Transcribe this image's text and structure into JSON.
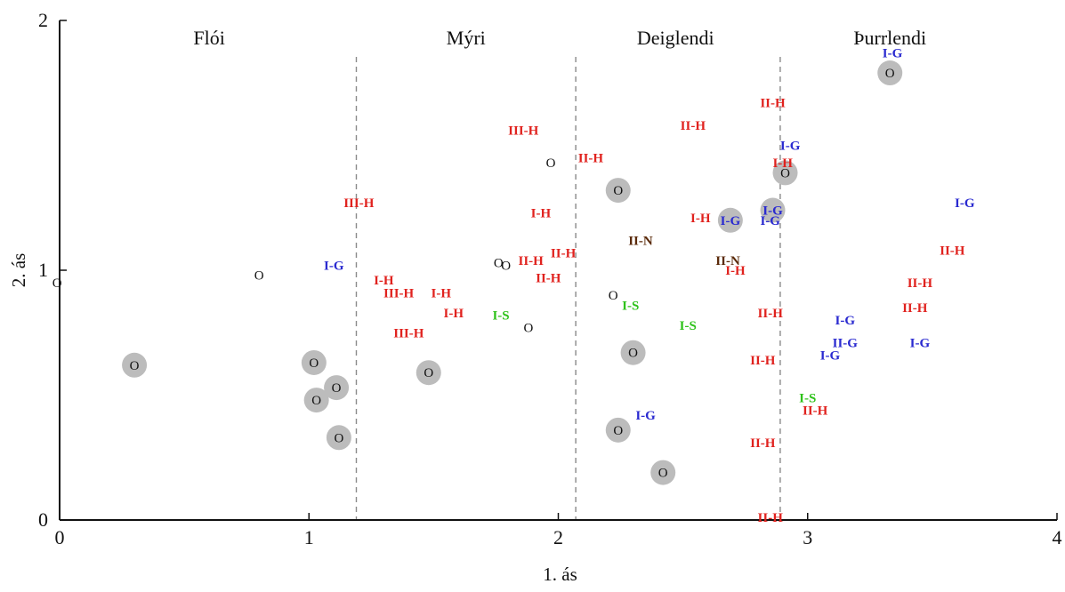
{
  "chart_data": {
    "type": "scatter",
    "xlabel": "1. ás",
    "ylabel": "2. ás",
    "xlim": [
      0,
      4
    ],
    "ylim": [
      0,
      2
    ],
    "x_ticks": [
      "0",
      "1",
      "2",
      "3",
      "4"
    ],
    "y_ticks": [
      "0",
      "1",
      "2"
    ],
    "grid": false,
    "zones": [
      {
        "label": "Flói",
        "x_center": 0.6
      },
      {
        "label": "Mýri",
        "x_center": 1.63
      },
      {
        "label": "Deiglendi",
        "x_center": 2.47
      },
      {
        "label": "Þurrlendi",
        "x_center": 3.33
      }
    ],
    "zone_boundaries": [
      1.19,
      2.07,
      2.89
    ],
    "colors": {
      "H": "#e0221e",
      "G": "#2a2ad0",
      "S": "#2ec21a",
      "N": "#5a2a0a",
      "O": "#111111",
      "highlight": "#bcbcbc",
      "boundary": "#8a8a8a",
      "axis": "#111111"
    },
    "points": [
      {
        "label": "O",
        "x": -0.01,
        "y": 0.95,
        "group": "O",
        "highlighted": false
      },
      {
        "label": "O",
        "x": 0.3,
        "y": 0.62,
        "group": "O",
        "highlighted": true
      },
      {
        "label": "O",
        "x": 0.8,
        "y": 0.98,
        "group": "O",
        "highlighted": false
      },
      {
        "label": "I-G",
        "x": 1.1,
        "y": 1.02,
        "group": "G",
        "highlighted": false
      },
      {
        "label": "O",
        "x": 1.02,
        "y": 0.63,
        "group": "O",
        "highlighted": true
      },
      {
        "label": "O",
        "x": 1.03,
        "y": 0.48,
        "group": "O",
        "highlighted": true
      },
      {
        "label": "O",
        "x": 1.11,
        "y": 0.53,
        "group": "O",
        "highlighted": true
      },
      {
        "label": "O",
        "x": 1.12,
        "y": 0.33,
        "group": "O",
        "highlighted": true
      },
      {
        "label": "III-H",
        "x": 1.2,
        "y": 1.27,
        "group": "H",
        "highlighted": false
      },
      {
        "label": "I-H",
        "x": 1.3,
        "y": 0.96,
        "group": "H",
        "highlighted": false
      },
      {
        "label": "III-H",
        "x": 1.36,
        "y": 0.91,
        "group": "H",
        "highlighted": false
      },
      {
        "label": "I-H",
        "x": 1.53,
        "y": 0.91,
        "group": "H",
        "highlighted": false
      },
      {
        "label": "I-H",
        "x": 1.58,
        "y": 0.83,
        "group": "H",
        "highlighted": false
      },
      {
        "label": "III-H",
        "x": 1.4,
        "y": 0.75,
        "group": "H",
        "highlighted": false
      },
      {
        "label": "O",
        "x": 1.48,
        "y": 0.59,
        "group": "O",
        "highlighted": true
      },
      {
        "label": "I-S",
        "x": 1.77,
        "y": 0.82,
        "group": "S",
        "highlighted": false
      },
      {
        "label": "O",
        "x": 1.76,
        "y": 1.03,
        "group": "O",
        "highlighted": false
      },
      {
        "label": "O",
        "x": 1.79,
        "y": 1.02,
        "group": "O",
        "highlighted": false
      },
      {
        "label": "II-H",
        "x": 1.89,
        "y": 1.04,
        "group": "H",
        "highlighted": false
      },
      {
        "label": "II-H",
        "x": 2.02,
        "y": 1.07,
        "group": "H",
        "highlighted": false
      },
      {
        "label": "II-H",
        "x": 1.96,
        "y": 0.97,
        "group": "H",
        "highlighted": false
      },
      {
        "label": "O",
        "x": 1.88,
        "y": 0.77,
        "group": "O",
        "highlighted": false
      },
      {
        "label": "III-H",
        "x": 1.86,
        "y": 1.56,
        "group": "H",
        "highlighted": false
      },
      {
        "label": "I-H",
        "x": 1.93,
        "y": 1.23,
        "group": "H",
        "highlighted": false
      },
      {
        "label": "O",
        "x": 1.97,
        "y": 1.43,
        "group": "O",
        "highlighted": false
      },
      {
        "label": "II-H",
        "x": 2.13,
        "y": 1.45,
        "group": "H",
        "highlighted": false
      },
      {
        "label": "O",
        "x": 2.24,
        "y": 1.32,
        "group": "O",
        "highlighted": true
      },
      {
        "label": "II-N",
        "x": 2.33,
        "y": 1.12,
        "group": "N",
        "highlighted": false
      },
      {
        "label": "O",
        "x": 2.22,
        "y": 0.9,
        "group": "O",
        "highlighted": false
      },
      {
        "label": "I-S",
        "x": 2.29,
        "y": 0.86,
        "group": "S",
        "highlighted": false
      },
      {
        "label": "O",
        "x": 2.3,
        "y": 0.67,
        "group": "O",
        "highlighted": true
      },
      {
        "label": "I-G",
        "x": 2.35,
        "y": 0.42,
        "group": "G",
        "highlighted": false
      },
      {
        "label": "O",
        "x": 2.24,
        "y": 0.36,
        "group": "O",
        "highlighted": true
      },
      {
        "label": "O",
        "x": 2.42,
        "y": 0.19,
        "group": "O",
        "highlighted": true
      },
      {
        "label": "I-S",
        "x": 2.52,
        "y": 0.78,
        "group": "S",
        "highlighted": false
      },
      {
        "label": "II-H",
        "x": 2.54,
        "y": 1.58,
        "group": "H",
        "highlighted": false
      },
      {
        "label": "I-H",
        "x": 2.57,
        "y": 1.21,
        "group": "H",
        "highlighted": false
      },
      {
        "label": "I-G",
        "x": 2.69,
        "y": 1.2,
        "group": "G",
        "highlighted": true
      },
      {
        "label": "II-N",
        "x": 2.68,
        "y": 1.04,
        "group": "N",
        "highlighted": false
      },
      {
        "label": "I-H",
        "x": 2.71,
        "y": 1.0,
        "group": "H",
        "highlighted": false
      },
      {
        "label": "II-H",
        "x": 2.86,
        "y": 1.67,
        "group": "H",
        "highlighted": false
      },
      {
        "label": "I-G",
        "x": 2.93,
        "y": 1.5,
        "group": "G",
        "highlighted": false
      },
      {
        "label": "I-H",
        "x": 2.9,
        "y": 1.43,
        "group": "H",
        "highlighted": false
      },
      {
        "label": "O",
        "x": 2.91,
        "y": 1.39,
        "group": "O",
        "highlighted": true
      },
      {
        "label": "I-G",
        "x": 2.86,
        "y": 1.24,
        "group": "G",
        "highlighted": true
      },
      {
        "label": "I-G",
        "x": 2.85,
        "y": 1.2,
        "group": "G",
        "highlighted": false
      },
      {
        "label": "II-H",
        "x": 2.85,
        "y": 0.83,
        "group": "H",
        "highlighted": false
      },
      {
        "label": "II-H",
        "x": 2.82,
        "y": 0.64,
        "group": "H",
        "highlighted": false
      },
      {
        "label": "II-H",
        "x": 2.82,
        "y": 0.31,
        "group": "H",
        "highlighted": false
      },
      {
        "label": "II-H",
        "x": 2.85,
        "y": 0.01,
        "group": "H",
        "highlighted": false
      },
      {
        "label": "I-S",
        "x": 3.0,
        "y": 0.49,
        "group": "S",
        "highlighted": false
      },
      {
        "label": "II-H",
        "x": 3.03,
        "y": 0.44,
        "group": "H",
        "highlighted": false
      },
      {
        "label": "I-G",
        "x": 3.34,
        "y": 1.87,
        "group": "G",
        "highlighted": false
      },
      {
        "label": "O",
        "x": 3.33,
        "y": 1.79,
        "group": "O",
        "highlighted": true
      },
      {
        "label": "I-G",
        "x": 3.15,
        "y": 0.8,
        "group": "G",
        "highlighted": false
      },
      {
        "label": "II-G",
        "x": 3.15,
        "y": 0.71,
        "group": "G",
        "highlighted": false
      },
      {
        "label": "I-G",
        "x": 3.09,
        "y": 0.66,
        "group": "G",
        "highlighted": false
      },
      {
        "label": "I-G",
        "x": 3.45,
        "y": 0.71,
        "group": "G",
        "highlighted": false
      },
      {
        "label": "II-H",
        "x": 3.45,
        "y": 0.95,
        "group": "H",
        "highlighted": false
      },
      {
        "label": "II-H",
        "x": 3.43,
        "y": 0.85,
        "group": "H",
        "highlighted": false
      },
      {
        "label": "II-H",
        "x": 3.58,
        "y": 1.08,
        "group": "H",
        "highlighted": false
      },
      {
        "label": "I-G",
        "x": 3.63,
        "y": 1.27,
        "group": "G",
        "highlighted": false
      }
    ]
  }
}
